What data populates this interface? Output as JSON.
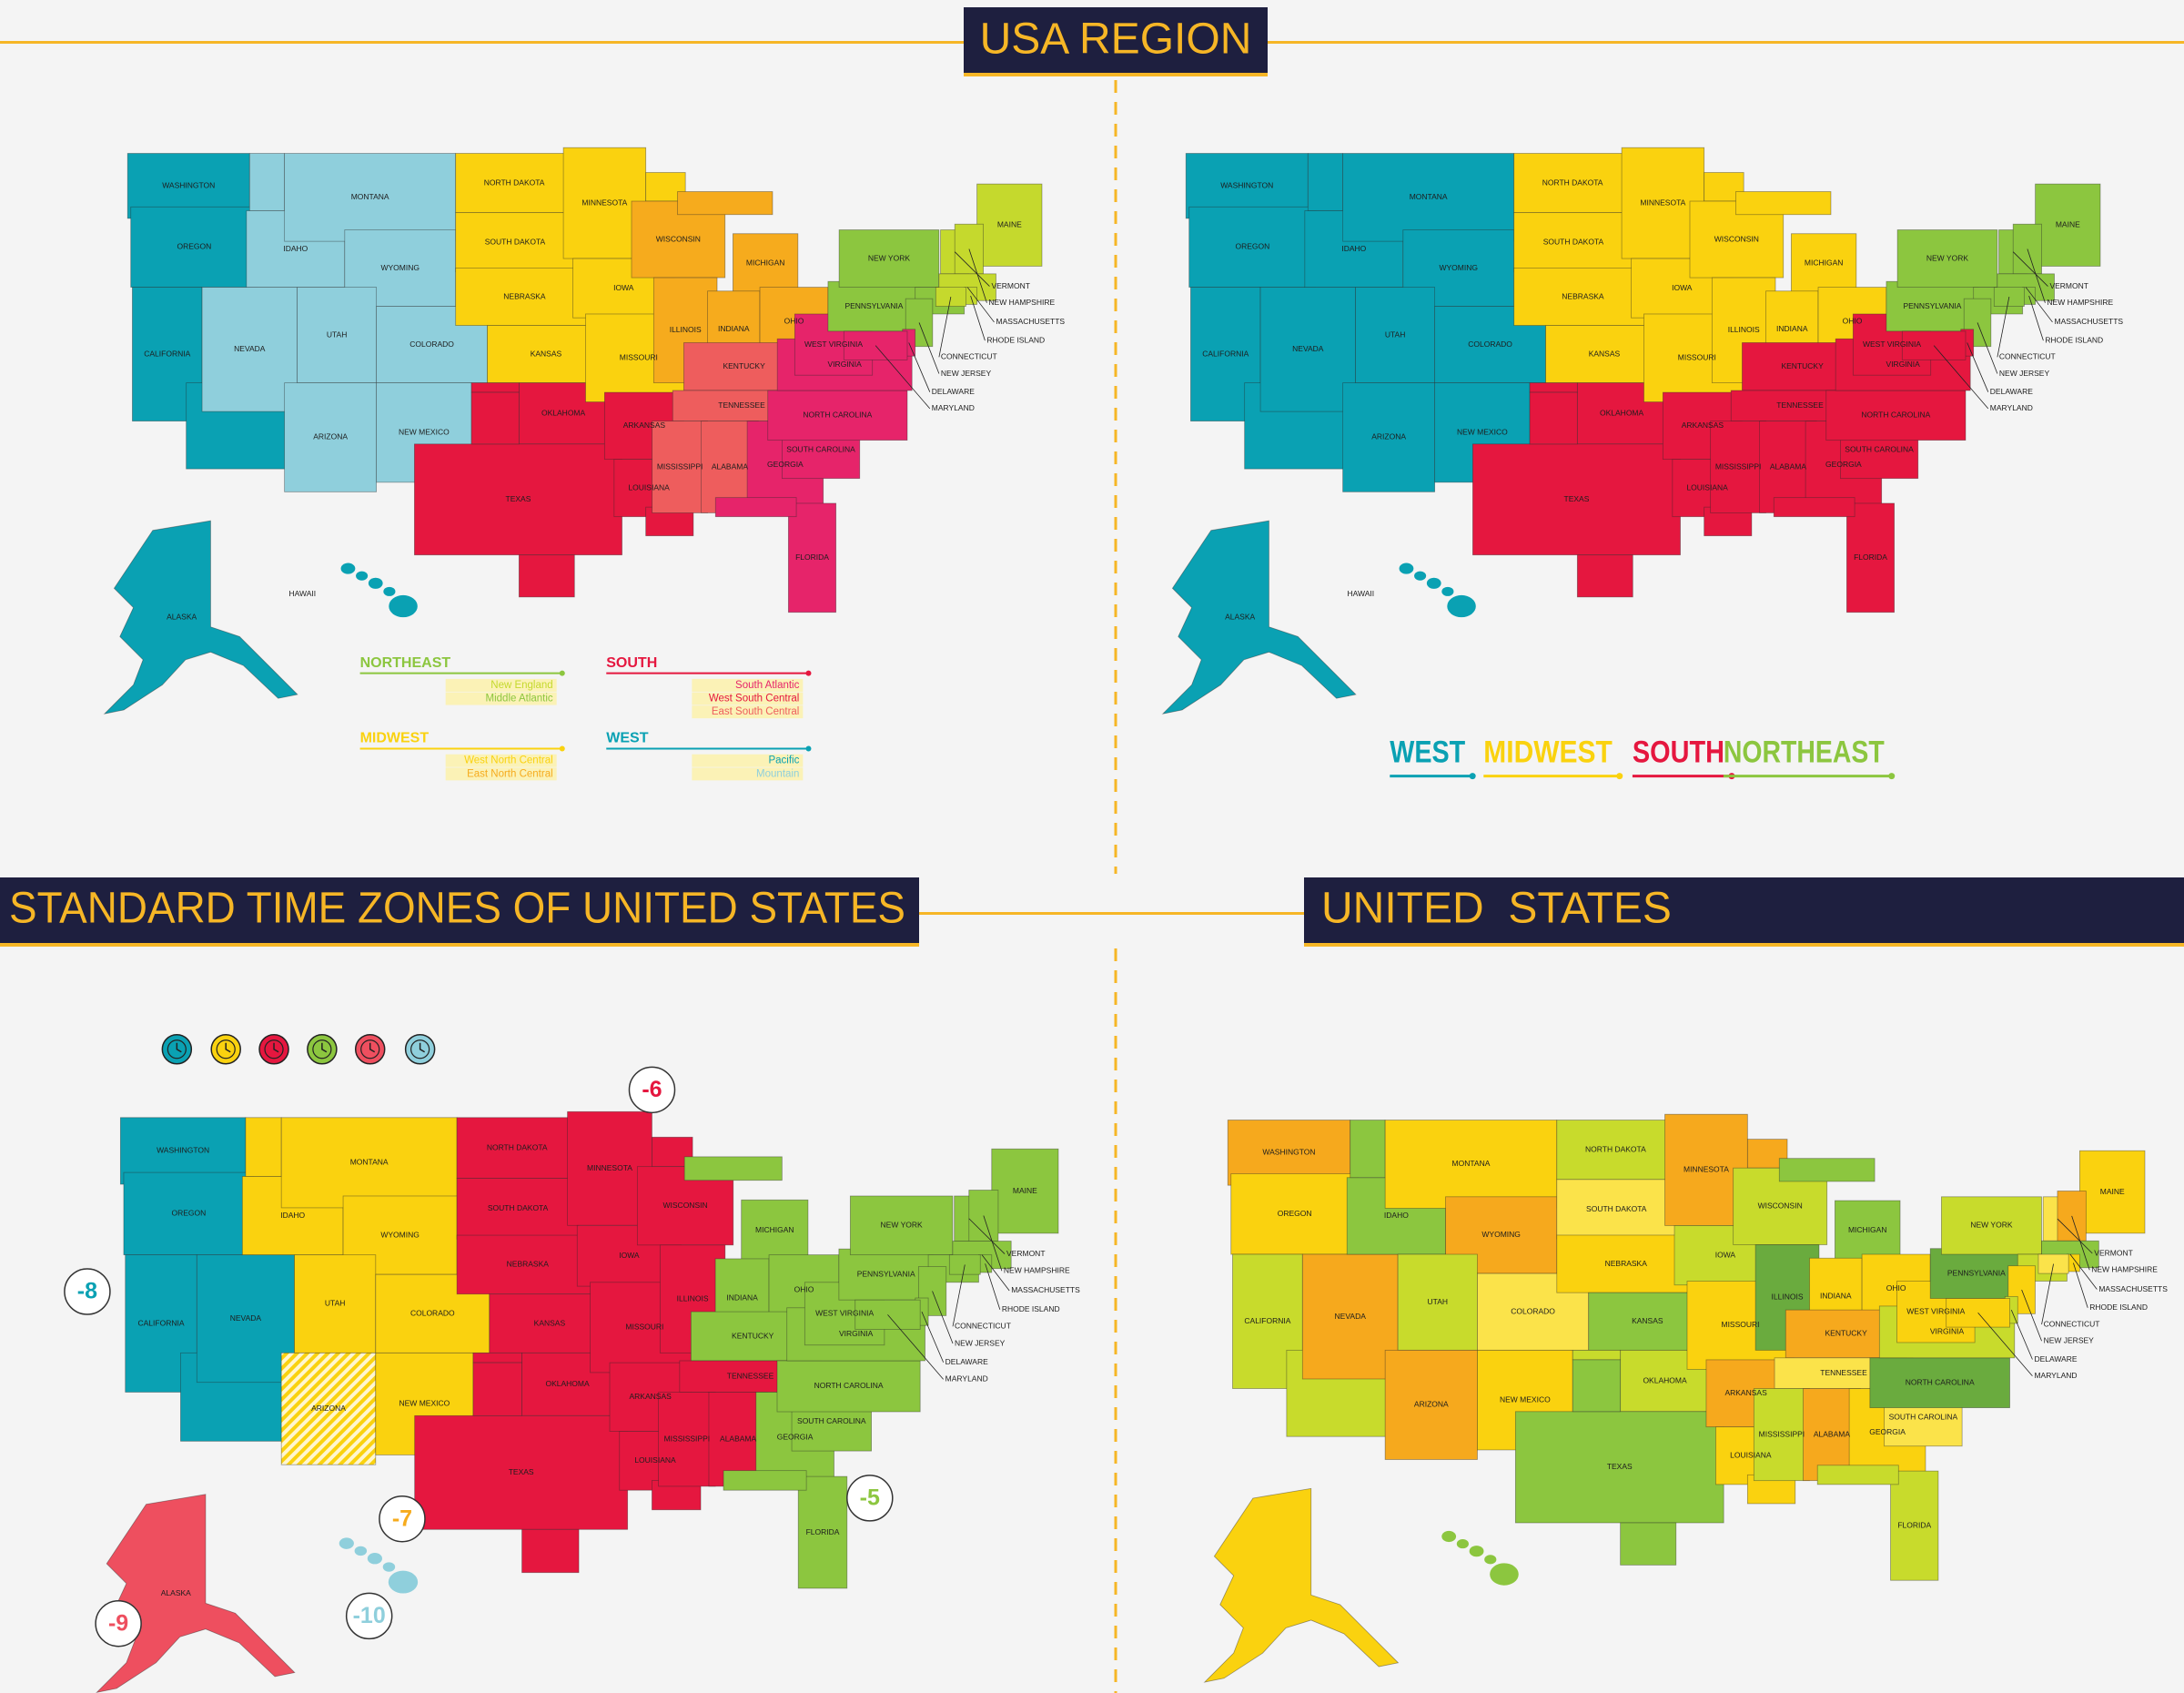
{
  "header": {
    "title": "USA REGION"
  },
  "sections": [
    {
      "title": "STANDARD TIME ZONES OF UNITED STATES"
    },
    {
      "title": "UNITED  STATES"
    }
  ],
  "state_labels": [
    "WASHINGTON",
    "OREGON",
    "CALIFORNIA",
    "NEVADA",
    "IDAHO",
    "MONTANA",
    "WYOMING",
    "UTAH",
    "COLORADO",
    "ARIZONA",
    "NEW MEXICO",
    "NORTH DAKOTA",
    "SOUTH DAKOTA",
    "NEBRASKA",
    "KANSAS",
    "OKLAHOMA",
    "TEXAS",
    "MINNESOTA",
    "IOWA",
    "MISSOURI",
    "ARKANSAS",
    "LOUISIANA",
    "WISCONSIN",
    "ILLINOIS",
    "MICHIGAN",
    "INDIANA",
    "OHIO",
    "KENTUCKY",
    "TENNESSEE",
    "MISSISSIPPI",
    "ALABAMA",
    "GEORGIA",
    "FLORIDA",
    "SOUTH CAROLINA",
    "NORTH CAROLINA",
    "VIRGINIA",
    "WEST VIRGINIA",
    "PENNSYLVANIA",
    "NEW YORK",
    "MAINE",
    "VERMONT",
    "NEW HAMPSHIRE",
    "MASSACHUSETTS",
    "RHODE ISLAND",
    "CONNECTICUT",
    "NEW JERSEY",
    "DELAWARE",
    "MARYLAND",
    "HAWAII",
    "ALASKA"
  ],
  "division_legend": [
    {
      "region": "NORTHEAST",
      "divisions": [
        "New England",
        "Middle Atlantic"
      ]
    },
    {
      "region": "SOUTH",
      "divisions": [
        "South Atlantic",
        "West South Central",
        "East South Central"
      ]
    },
    {
      "region": "MIDWEST",
      "divisions": [
        "West North Central",
        "East North Central"
      ]
    },
    {
      "region": "WEST",
      "divisions": [
        "Pacific",
        "Mountain"
      ]
    }
  ],
  "region_legend": [
    "WEST",
    "MIDWEST",
    "SOUTH",
    "NORTHEAST"
  ],
  "time_zone_offsets": [
    -8,
    -7,
    -6,
    -5,
    -9,
    -10
  ]
}
